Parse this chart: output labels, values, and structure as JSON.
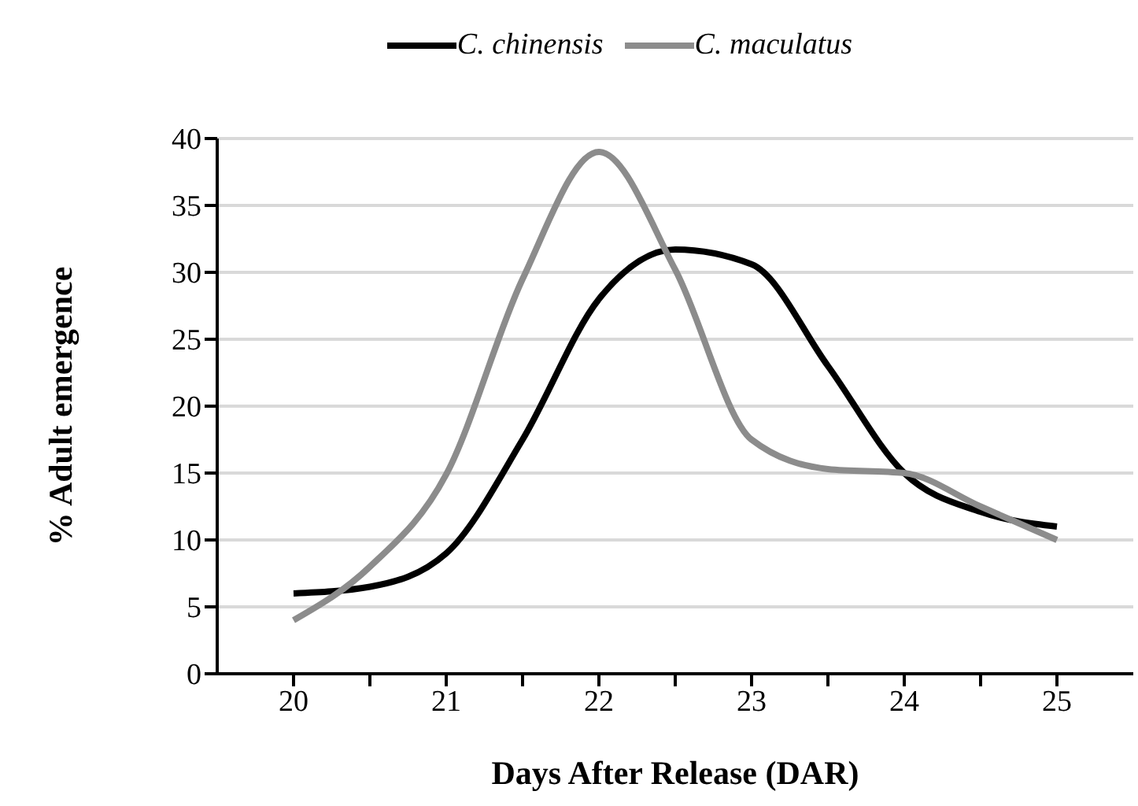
{
  "chart_data": {
    "type": "line",
    "xlabel": "Days After Release (DAR)",
    "ylabel": "% Adult emergence",
    "x": [
      20,
      20.5,
      21,
      21.5,
      22,
      22.5,
      23,
      23.5,
      24,
      24.5,
      25
    ],
    "series": [
      {
        "name": "C. chinensis",
        "color": "#000000",
        "values": [
          6,
          6.5,
          9,
          17.5,
          28,
          31.7,
          30.6,
          23,
          15,
          12.1,
          11
        ]
      },
      {
        "name": "C. maculatus",
        "color": "#8c8c8c",
        "values": [
          4,
          8,
          14.9,
          29.5,
          39,
          30.2,
          17.5,
          15.3,
          15,
          12.5,
          10
        ]
      }
    ],
    "xlim": [
      19.5,
      25.5
    ],
    "xticks": [
      20,
      {
        "value": 20.5,
        "label": null
      },
      21,
      {
        "value": 21.5,
        "label": null
      },
      22,
      {
        "value": 22.5,
        "label": null
      },
      23,
      {
        "value": 23.5,
        "label": null
      },
      24,
      {
        "value": 24.5,
        "label": null
      },
      25
    ],
    "ylim": [
      0,
      40
    ],
    "yticks": [
      0,
      5,
      10,
      15,
      20,
      25,
      30,
      35,
      40
    ],
    "grid": "y",
    "legend": "top",
    "marker": "none",
    "line_style": "solid"
  }
}
